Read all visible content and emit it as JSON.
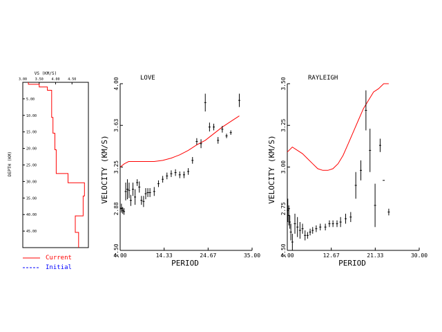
{
  "chart_data": [
    {
      "type": "line",
      "title": "",
      "xlabel": "VS (KM/S)",
      "ylabel": "DEPTH (KM)",
      "xlim": [
        3.0,
        5.0
      ],
      "ylim": [
        0,
        50
      ],
      "y_inverted": true,
      "x_ticks": [
        "3.00",
        "3.50",
        "4.00",
        "4.50"
      ],
      "y_ticks": [
        "5.00",
        "10.00",
        "15.00",
        "20.00",
        "25.00",
        "30.00",
        "35.00",
        "40.00",
        "45.00"
      ],
      "series": [
        {
          "name": "Current",
          "color": "#ff0000",
          "points": [
            [
              3.17,
              0
            ],
            [
              3.17,
              0.6
            ],
            [
              3.5,
              0.6
            ],
            [
              3.5,
              1.4
            ],
            [
              3.75,
              1.4
            ],
            [
              3.75,
              2.4
            ],
            [
              3.88,
              2.4
            ],
            [
              3.88,
              10.6
            ],
            [
              3.92,
              10.6
            ],
            [
              3.92,
              15.4
            ],
            [
              3.98,
              15.4
            ],
            [
              3.98,
              20.4
            ],
            [
              4.02,
              20.4
            ],
            [
              4.02,
              27.6
            ],
            [
              4.38,
              27.6
            ],
            [
              4.38,
              30.4
            ],
            [
              4.88,
              30.4
            ],
            [
              4.88,
              34.4
            ],
            [
              4.84,
              34.4
            ],
            [
              4.84,
              40.4
            ],
            [
              4.6,
              40.4
            ],
            [
              4.6,
              45.4
            ],
            [
              4.7,
              45.4
            ],
            [
              4.7,
              50
            ]
          ]
        }
      ],
      "legend": {
        "position": "bottom-left",
        "entries": [
          {
            "name": "Current",
            "color": "#ff0000",
            "style": "solid"
          },
          {
            "name": "Initial",
            "color": "#0000ff",
            "style": "dashed"
          }
        ]
      }
    },
    {
      "type": "scatter",
      "title": "LOVE",
      "xlabel": "PERIOD",
      "ylabel": "VELOCITY (KM/S)",
      "xlim": [
        4.0,
        35.0
      ],
      "ylim": [
        2.5,
        4.0
      ],
      "x_ticks": [
        "4.00",
        "14.33",
        "24.67",
        "35.00"
      ],
      "y_ticks": [
        "2.50",
        "2.88",
        "3.25",
        "3.63",
        "4.00"
      ],
      "observed": [
        [
          4.3,
          2.88,
          0.04
        ],
        [
          4.6,
          2.86,
          0.03
        ],
        [
          4.9,
          2.85,
          0.03
        ],
        [
          5.3,
          3.03,
          0.08
        ],
        [
          5.7,
          3.05,
          0.09
        ],
        [
          6.1,
          3.04,
          0.07
        ],
        [
          6.5,
          2.95,
          0.05
        ],
        [
          7.0,
          3.05,
          0.06
        ],
        [
          7.5,
          2.98,
          0.07
        ],
        [
          8.0,
          3.11,
          0.03
        ],
        [
          8.5,
          3.07,
          0.05
        ],
        [
          9.0,
          2.95,
          0.04
        ],
        [
          9.5,
          2.94,
          0.05
        ],
        [
          10.0,
          3.01,
          0.05
        ],
        [
          10.5,
          3.02,
          0.04
        ],
        [
          11.0,
          3.02,
          0.04
        ],
        [
          12.0,
          3.03,
          0.04
        ],
        [
          13.0,
          3.1,
          0.03
        ],
        [
          14.0,
          3.14,
          0.03
        ],
        [
          15.0,
          3.17,
          0.03
        ],
        [
          16.0,
          3.19,
          0.03
        ],
        [
          17.0,
          3.2,
          0.03
        ],
        [
          18.0,
          3.18,
          0.03
        ],
        [
          19.0,
          3.18,
          0.03
        ],
        [
          20.0,
          3.21,
          0.03
        ],
        [
          21.0,
          3.31,
          0.03
        ],
        [
          22.0,
          3.48,
          0.03
        ],
        [
          23.0,
          3.46,
          0.04
        ],
        [
          24.0,
          3.83,
          0.08
        ],
        [
          25.0,
          3.61,
          0.04
        ],
        [
          26.0,
          3.61,
          0.03
        ],
        [
          27.0,
          3.49,
          0.03
        ],
        [
          28.0,
          3.59,
          0.03
        ],
        [
          29.0,
          3.53,
          0.02
        ],
        [
          30.0,
          3.56,
          0.02
        ],
        [
          32.0,
          3.85,
          0.06
        ]
      ],
      "predicted": [
        [
          4,
          3.25
        ],
        [
          5,
          3.28
        ],
        [
          6,
          3.3
        ],
        [
          8,
          3.3
        ],
        [
          12,
          3.3
        ],
        [
          14,
          3.31
        ],
        [
          16,
          3.33
        ],
        [
          18,
          3.36
        ],
        [
          20,
          3.4
        ],
        [
          22,
          3.45
        ],
        [
          24,
          3.49
        ],
        [
          26,
          3.55
        ],
        [
          28,
          3.61
        ],
        [
          30,
          3.66
        ],
        [
          32,
          3.71
        ]
      ]
    },
    {
      "type": "scatter",
      "title": "RAYLEIGH",
      "xlabel": "PERIOD",
      "ylabel": "VELOCITY (KM/S)",
      "xlim": [
        4.0,
        30.0
      ],
      "ylim": [
        2.5,
        3.5
      ],
      "x_ticks": [
        "4.00",
        "12.67",
        "21.33",
        "30.00"
      ],
      "y_ticks": [
        "2.50",
        "2.75",
        "3.00",
        "3.25",
        "3.50"
      ],
      "observed": [
        [
          4.1,
          2.74,
          0.07
        ],
        [
          4.3,
          2.71,
          0.06
        ],
        [
          4.5,
          2.67,
          0.04
        ],
        [
          4.7,
          2.61,
          0.05
        ],
        [
          5.0,
          2.55,
          0.05
        ],
        [
          5.5,
          2.66,
          0.06
        ],
        [
          6.0,
          2.64,
          0.06
        ],
        [
          6.5,
          2.62,
          0.05
        ],
        [
          7.0,
          2.63,
          0.03
        ],
        [
          7.5,
          2.59,
          0.03
        ],
        [
          8.0,
          2.59,
          0.02
        ],
        [
          8.5,
          2.61,
          0.02
        ],
        [
          9.0,
          2.62,
          0.02
        ],
        [
          9.7,
          2.63,
          0.02
        ],
        [
          10.5,
          2.64,
          0.02
        ],
        [
          11.5,
          2.64,
          0.02
        ],
        [
          12.3,
          2.66,
          0.02
        ],
        [
          13.0,
          2.66,
          0.02
        ],
        [
          13.8,
          2.66,
          0.02
        ],
        [
          14.5,
          2.67,
          0.03
        ],
        [
          15.5,
          2.69,
          0.03
        ],
        [
          16.5,
          2.7,
          0.03
        ],
        [
          17.5,
          2.89,
          0.08
        ],
        [
          18.5,
          2.98,
          0.06
        ],
        [
          19.5,
          3.34,
          0.12
        ],
        [
          20.3,
          3.1,
          0.13
        ],
        [
          21.3,
          2.77,
          0.13
        ],
        [
          22.3,
          3.13,
          0.04
        ],
        [
          23.0,
          2.92,
          0.0
        ],
        [
          24.0,
          2.73,
          0.02
        ]
      ],
      "predicted": [
        [
          4,
          3.09
        ],
        [
          5,
          3.12
        ],
        [
          6,
          3.1
        ],
        [
          7,
          3.08
        ],
        [
          8,
          3.05
        ],
        [
          9,
          3.02
        ],
        [
          10,
          2.99
        ],
        [
          11,
          2.98
        ],
        [
          12,
          2.98
        ],
        [
          13,
          2.99
        ],
        [
          14,
          3.02
        ],
        [
          15,
          3.07
        ],
        [
          16,
          3.14
        ],
        [
          17,
          3.21
        ],
        [
          18,
          3.28
        ],
        [
          19,
          3.35
        ],
        [
          20,
          3.4
        ],
        [
          21,
          3.45
        ],
        [
          22,
          3.47
        ],
        [
          23,
          3.5
        ],
        [
          24,
          3.5
        ]
      ]
    }
  ]
}
